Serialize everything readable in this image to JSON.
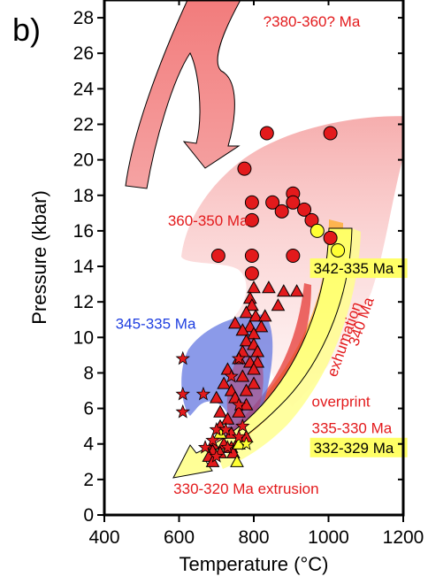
{
  "panel_label": "b)",
  "chart_data": {
    "type": "scatter",
    "xlabel": "Temperature (°C)",
    "ylabel": "Pressure (kbar)",
    "xlim": [
      400,
      1200
    ],
    "ylim": [
      0,
      29
    ],
    "xticks": [
      400,
      600,
      800,
      1000,
      1200
    ],
    "yticks": [
      0,
      2,
      4,
      6,
      8,
      10,
      12,
      14,
      16,
      18,
      20,
      22,
      24,
      26,
      28
    ],
    "grid": false,
    "series": [
      {
        "marker": "circle",
        "color": "#e31a1c",
        "points": [
          [
            835,
            21.5
          ],
          [
            1005,
            21.5
          ],
          [
            775,
            19.5
          ],
          [
            905,
            18.1
          ],
          [
            795,
            17.6
          ],
          [
            850,
            17.6
          ],
          [
            905,
            17.6
          ],
          [
            935,
            17.2
          ],
          [
            875,
            17.1
          ],
          [
            795,
            16.6
          ],
          [
            955,
            16.6
          ],
          [
            1005,
            15.6
          ],
          [
            705,
            14.6
          ],
          [
            795,
            14.6
          ],
          [
            905,
            14.6
          ],
          [
            795,
            13.6
          ]
        ]
      },
      {
        "marker": "circle",
        "color": "#ffff33",
        "points": [
          [
            970,
            16.0
          ],
          [
            1025,
            14.9
          ]
        ]
      },
      {
        "marker": "triangle",
        "color": "#e31a1c",
        "points": [
          [
            800,
            12.8
          ],
          [
            840,
            12.8
          ],
          [
            880,
            12.6
          ],
          [
            915,
            12.6
          ],
          [
            790,
            12.2
          ],
          [
            795,
            11.8
          ],
          [
            865,
            11.8
          ],
          [
            780,
            11.4
          ],
          [
            805,
            11.2
          ],
          [
            830,
            11.2
          ],
          [
            750,
            10.8
          ],
          [
            790,
            10.6
          ],
          [
            820,
            10.6
          ],
          [
            770,
            10.4
          ],
          [
            800,
            10.2
          ],
          [
            780,
            9.8
          ],
          [
            800,
            9.6
          ],
          [
            770,
            9.2
          ],
          [
            810,
            9.2
          ],
          [
            760,
            8.8
          ],
          [
            790,
            8.6
          ],
          [
            810,
            8.6
          ],
          [
            730,
            8.2
          ],
          [
            800,
            8.2
          ],
          [
            770,
            7.8
          ],
          [
            720,
            7.4
          ],
          [
            800,
            7.4
          ],
          [
            740,
            7.0
          ],
          [
            780,
            7.0
          ],
          [
            700,
            6.6
          ],
          [
            750,
            6.6
          ],
          [
            780,
            6.2
          ],
          [
            710,
            5.8
          ],
          [
            760,
            5.8
          ],
          [
            730,
            5.4
          ],
          [
            710,
            5.0
          ],
          [
            740,
            4.6
          ],
          [
            780,
            4.4
          ],
          [
            760,
            4.2
          ],
          [
            690,
            4.0
          ],
          [
            720,
            4.0
          ],
          [
            740,
            3.8
          ],
          [
            690,
            3.6
          ],
          [
            710,
            3.5
          ],
          [
            745,
            3.5
          ],
          [
            680,
            3.3
          ],
          [
            690,
            3.0
          ]
        ]
      },
      {
        "marker": "triangle",
        "color": "#ffff33",
        "points": [
          [
            710,
            4.6
          ],
          [
            760,
            4.0
          ],
          [
            755,
            3.0
          ]
        ]
      },
      {
        "marker": "star",
        "color": "#e31a1c",
        "points": [
          [
            610,
            8.8
          ],
          [
            610,
            6.8
          ],
          [
            610,
            5.8
          ],
          [
            665,
            6.8
          ],
          [
            760,
            8.8
          ],
          [
            740,
            7.8
          ],
          [
            760,
            6.2
          ],
          [
            770,
            5.0
          ],
          [
            700,
            4.8
          ],
          [
            725,
            4.8
          ],
          [
            760,
            4.4
          ],
          [
            690,
            4.2
          ],
          [
            670,
            3.8
          ],
          [
            730,
            3.8
          ],
          [
            700,
            3.3
          ]
        ]
      },
      {
        "marker": "star",
        "color": "#ffff33",
        "points": [
          [
            780,
            4.0
          ]
        ]
      }
    ],
    "annotations": [
      {
        "text": "?380-360? Ma",
        "x": 955,
        "y": 27.5,
        "color": "#e31a1c",
        "anchor": "middle",
        "rotate": 0
      },
      {
        "text": "360-350 Ma",
        "x": 570,
        "y": 16.3,
        "color": "#e31a1c",
        "anchor": "start",
        "rotate": 0
      },
      {
        "text": "345-335 Ma",
        "x": 430,
        "y": 10.5,
        "color": "#1f3fe0",
        "anchor": "start",
        "rotate": 0
      },
      {
        "text": "exhumation",
        "x": 1055,
        "y": 9.8,
        "color": "#e31a1c",
        "anchor": "middle",
        "rotate": -71
      },
      {
        "text": "340 Ma",
        "x": 1100,
        "y": 10.8,
        "color": "#e31a1c",
        "anchor": "middle",
        "rotate": -71
      },
      {
        "text": "overprint",
        "x": 955,
        "y": 6.1,
        "color": "#e31a1c",
        "anchor": "start",
        "rotate": 0
      },
      {
        "text": "335-330 Ma",
        "x": 955,
        "y": 4.6,
        "color": "#e31a1c",
        "anchor": "start",
        "rotate": 0
      },
      {
        "text": "330-320 Ma extrusion",
        "x": 585,
        "y": 1.2,
        "color": "#e31a1c",
        "anchor": "start",
        "rotate": 0
      }
    ],
    "boxed_labels": [
      {
        "text": "342-335 Ma",
        "x": 960,
        "y": 13.6,
        "fill": "#ffff66"
      },
      {
        "text": "332-329 Ma",
        "x": 960,
        "y": 3.5,
        "fill": "#ffff66"
      }
    ]
  }
}
